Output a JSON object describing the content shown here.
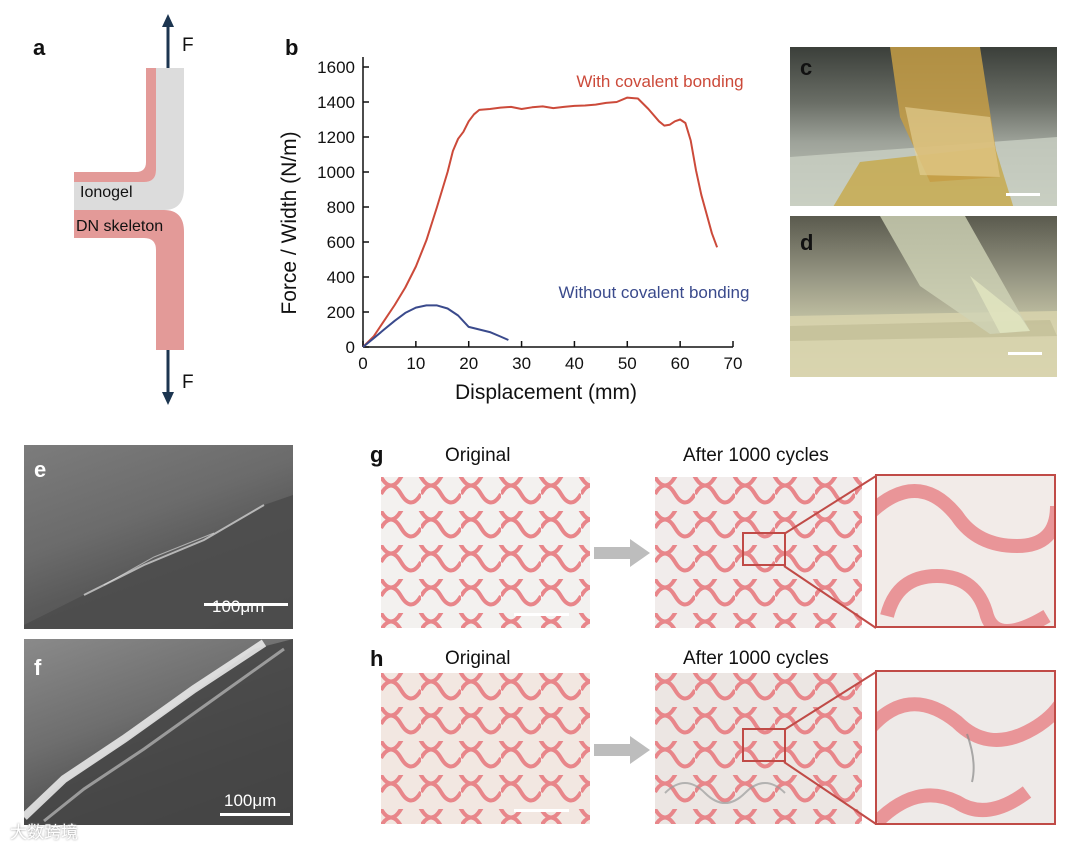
{
  "panels": {
    "a": "a",
    "b": "b",
    "c": "c",
    "d": "d",
    "e": "e",
    "f": "f",
    "g": "g",
    "h": "h"
  },
  "schematic": {
    "force_top": "F",
    "force_bottom": "F",
    "ionogel_label": "Ionogel",
    "skeleton_label": "DN skeleton"
  },
  "sem": {
    "e_scale": "100μm",
    "f_scale": "100μm"
  },
  "cycles": {
    "g_original": "Original",
    "g_after": "After 1000 cycles",
    "h_original": "Original",
    "h_after": "After 1000 cycles"
  },
  "watermark": "大数跨境",
  "colors": {
    "with_bonding": "#cc4a3a",
    "without_bonding": "#3a4a8c",
    "skeleton_pink": "#e39a98",
    "ionogel_gray": "#dcdcdc"
  },
  "chart_data": {
    "type": "line",
    "xlabel": "Displacement (mm)",
    "ylabel": "Force / Width (N/m)",
    "xlim": [
      0,
      70
    ],
    "ylim": [
      0,
      1600
    ],
    "xticks": [
      0,
      10,
      20,
      30,
      40,
      50,
      60,
      70
    ],
    "yticks": [
      0,
      200,
      400,
      600,
      800,
      1000,
      1200,
      1400,
      1600
    ],
    "grid": false,
    "series": [
      {
        "name": "With covalent bonding",
        "color": "#cc4a3a",
        "x": [
          0,
          2,
          4,
          6,
          8,
          10,
          12,
          14,
          16,
          17,
          18,
          19,
          20,
          21,
          22,
          24,
          26,
          28,
          30,
          32,
          34,
          36,
          38,
          40,
          42,
          44,
          46,
          48,
          50,
          52,
          54,
          56,
          57,
          58,
          59,
          60,
          61,
          62,
          63,
          64,
          65,
          66,
          67
        ],
        "y": [
          0,
          60,
          150,
          240,
          340,
          460,
          610,
          800,
          1000,
          1120,
          1190,
          1230,
          1290,
          1330,
          1355,
          1360,
          1368,
          1372,
          1360,
          1370,
          1375,
          1365,
          1372,
          1378,
          1380,
          1385,
          1395,
          1400,
          1425,
          1420,
          1360,
          1290,
          1265,
          1270,
          1290,
          1300,
          1280,
          1180,
          1010,
          870,
          760,
          650,
          570
        ]
      },
      {
        "name": "Without covalent bonding",
        "color": "#3a4a8c",
        "x": [
          0,
          2,
          4,
          6,
          8,
          10,
          12,
          14,
          16,
          18,
          20,
          22,
          24,
          26,
          27.5
        ],
        "y": [
          0,
          50,
          100,
          150,
          195,
          225,
          238,
          238,
          220,
          180,
          115,
          100,
          85,
          60,
          40
        ]
      }
    ]
  }
}
